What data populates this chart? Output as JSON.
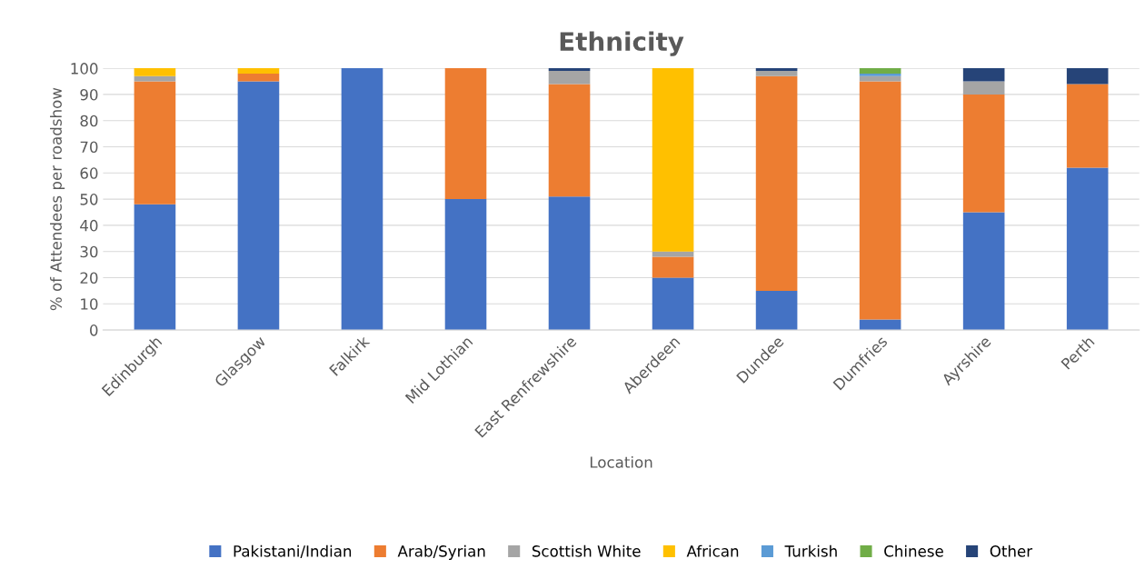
{
  "chart_data": {
    "type": "bar",
    "stacked": true,
    "title": "Ethnicity",
    "xlabel": "Location",
    "ylabel": "% of Attendees per roadshow",
    "categories": [
      "Edinburgh",
      "Glasgow",
      "Falkirk",
      "Mid Lothian",
      "East Renfrewshire",
      "Aberdeen",
      "Dundee",
      "Dumfries",
      "Ayrshire",
      "Perth"
    ],
    "series": [
      {
        "name": "Pakistani/Indian",
        "color": "#4472c4",
        "values": [
          48,
          95,
          100,
          50,
          51,
          20,
          15,
          4,
          45,
          62
        ]
      },
      {
        "name": "Arab/Syrian",
        "color": "#ed7d31",
        "values": [
          47,
          3,
          0,
          50,
          43,
          8,
          82,
          91,
          45,
          32
        ]
      },
      {
        "name": "Scottish White",
        "color": "#a5a5a5",
        "values": [
          2,
          0,
          0,
          0,
          5,
          2,
          2,
          2,
          5,
          0
        ]
      },
      {
        "name": "African",
        "color": "#ffc000",
        "values": [
          3,
          2,
          0,
          0,
          0,
          70,
          0,
          0,
          0,
          0
        ]
      },
      {
        "name": "Turkish",
        "color": "#5b9bd5",
        "values": [
          0,
          0,
          0,
          0,
          0,
          0,
          0,
          1,
          0,
          0
        ]
      },
      {
        "name": "Chinese",
        "color": "#70ad47",
        "values": [
          0,
          0,
          0,
          0,
          0,
          0,
          0,
          2,
          0,
          0
        ]
      },
      {
        "name": "Other",
        "color": "#264478",
        "values": [
          0,
          0,
          0,
          0,
          1,
          0,
          1,
          0,
          5,
          6
        ]
      }
    ],
    "ylim": [
      0,
      100
    ],
    "yticks": [
      0,
      10,
      20,
      30,
      40,
      50,
      60,
      70,
      80,
      90,
      100
    ],
    "grid": "y",
    "legend": "bottom"
  }
}
